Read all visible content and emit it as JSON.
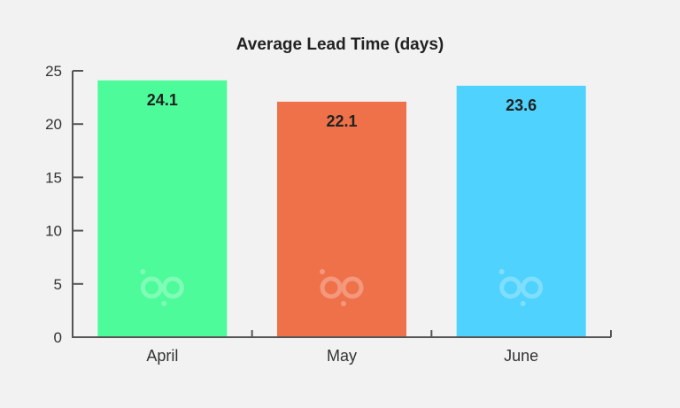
{
  "chart_data": {
    "type": "bar",
    "title": "Average Lead Time (days)",
    "xlabel": "",
    "ylabel": "",
    "categories": [
      "April",
      "May",
      "June"
    ],
    "values": [
      24.1,
      22.1,
      23.6
    ],
    "data_labels": [
      "24.1",
      "22.1",
      "23.6"
    ],
    "ylim": [
      0,
      25
    ],
    "yticks": [
      0,
      5,
      10,
      15,
      20,
      25
    ],
    "ytick_labels": [
      "0",
      "5",
      "10",
      "15",
      "20",
      "25"
    ],
    "grid": false,
    "legend": "none",
    "bar_colors": [
      "#4dfb9a",
      "#ef714a",
      "#4fd2fd"
    ],
    "watermark_icon": "bp-logo-icon"
  },
  "colors": {
    "background": "#f2f2f2",
    "axis": "#555555",
    "text": "#222222"
  }
}
